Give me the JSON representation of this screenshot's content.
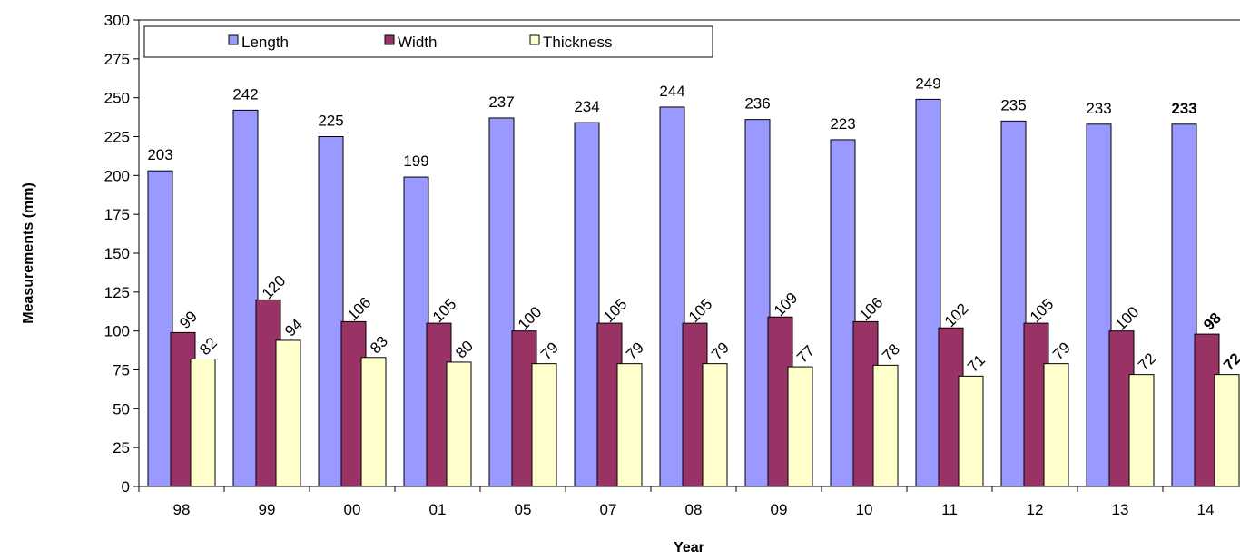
{
  "chart_data": {
    "type": "bar",
    "title": "",
    "xlabel": "Year",
    "ylabel": "Measurements (mm)",
    "categories": [
      "98",
      "99",
      "00",
      "01",
      "05",
      "07",
      "08",
      "09",
      "10",
      "11",
      "12",
      "13",
      "14"
    ],
    "series": [
      {
        "name": "Length",
        "color": "#9999FF",
        "values": [
          203,
          242,
          225,
          199,
          237,
          234,
          244,
          236,
          223,
          249,
          235,
          233,
          233
        ]
      },
      {
        "name": "Width",
        "color": "#993366",
        "values": [
          99,
          120,
          106,
          105,
          100,
          105,
          105,
          109,
          106,
          102,
          105,
          100,
          98
        ]
      },
      {
        "name": "Thickness",
        "color": "#FFFFCC",
        "values": [
          82,
          94,
          83,
          80,
          79,
          79,
          79,
          77,
          78,
          71,
          79,
          72,
          72
        ]
      }
    ],
    "value_labels": {
      "Length": [
        "203",
        "242",
        "225",
        "199",
        "237",
        "234",
        "244",
        "236",
        "223",
        "249",
        "235",
        "233",
        "233"
      ],
      "Width": [
        "99",
        "120",
        "106",
        "105",
        "100",
        "105",
        "105",
        "109",
        "106",
        "102",
        "105",
        "100",
        "98"
      ],
      "Thickness": [
        "82",
        "94",
        "83",
        "80",
        "79",
        "79",
        "79",
        "77",
        "78",
        "71",
        "79",
        "72",
        "72"
      ]
    },
    "bold_last_category_labels": true,
    "ylim": [
      0,
      300
    ],
    "yticks": [
      "0",
      "25",
      "50",
      "75",
      "100",
      "125",
      "150",
      "175",
      "200",
      "225",
      "250",
      "275",
      "300"
    ],
    "grid": false,
    "legend_position": "top-left"
  }
}
